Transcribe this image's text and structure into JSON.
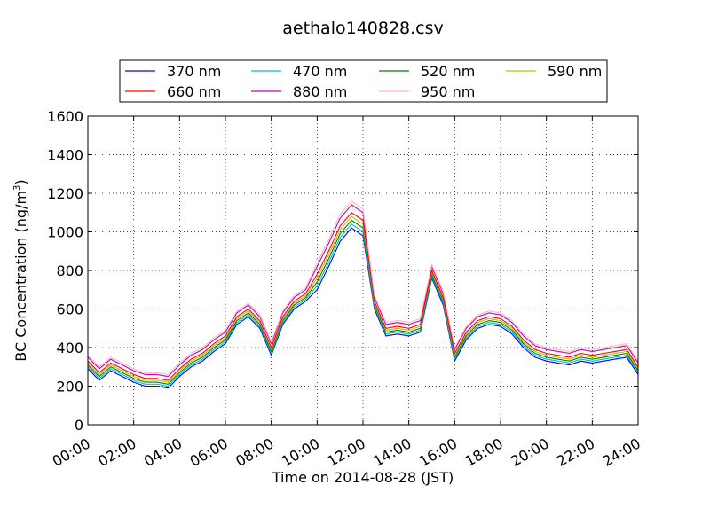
{
  "chart_data": {
    "type": "line",
    "title": "aethalo140828.csv",
    "xlabel": "Time on 2014-08-28 (JST)",
    "ylabel": {
      "main": "BC Concentration (ng/m",
      "sup": "3",
      "close": ")"
    },
    "xlim": [
      0,
      24
    ],
    "ylim": [
      0,
      1600
    ],
    "grid": true,
    "legend_position": "top-center",
    "x_ticks": [
      {
        "value": 0,
        "label": "00:00"
      },
      {
        "value": 2,
        "label": "02:00"
      },
      {
        "value": 4,
        "label": "04:00"
      },
      {
        "value": 6,
        "label": "06:00"
      },
      {
        "value": 8,
        "label": "08:00"
      },
      {
        "value": 10,
        "label": "10:00"
      },
      {
        "value": 12,
        "label": "12:00"
      },
      {
        "value": 14,
        "label": "14:00"
      },
      {
        "value": 16,
        "label": "16:00"
      },
      {
        "value": 18,
        "label": "18:00"
      },
      {
        "value": 20,
        "label": "20:00"
      },
      {
        "value": 22,
        "label": "22:00"
      },
      {
        "value": 24,
        "label": "24:00"
      }
    ],
    "y_ticks": [
      0,
      200,
      400,
      600,
      800,
      1000,
      1200,
      1400,
      1600
    ],
    "x": [
      0,
      0.5,
      1,
      1.5,
      2,
      2.5,
      3,
      3.5,
      4,
      4.5,
      5,
      5.5,
      6,
      6.5,
      7,
      7.5,
      8,
      8.5,
      9,
      9.5,
      10,
      10.5,
      11,
      11.5,
      12,
      12.5,
      13,
      13.5,
      14,
      14.5,
      15,
      15.5,
      16,
      16.5,
      17,
      17.5,
      18,
      18.5,
      19,
      19.5,
      20,
      20.5,
      21,
      21.5,
      22,
      22.5,
      23,
      23.5,
      24
    ],
    "series": [
      {
        "name": "370 nm",
        "color": "#0000ff",
        "values": [
          290,
          230,
          280,
          250,
          220,
          200,
          200,
          190,
          250,
          300,
          330,
          380,
          420,
          520,
          560,
          500,
          360,
          520,
          600,
          640,
          700,
          820,
          950,
          1020,
          980,
          600,
          460,
          470,
          460,
          480,
          760,
          620,
          330,
          440,
          500,
          520,
          510,
          470,
          400,
          350,
          330,
          320,
          310,
          330,
          320,
          330,
          340,
          350,
          260
        ]
      },
      {
        "name": "470 nm",
        "color": "#00bfbf",
        "values": [
          300,
          240,
          290,
          260,
          230,
          210,
          210,
          200,
          260,
          310,
          340,
          390,
          430,
          530,
          570,
          510,
          370,
          530,
          610,
          650,
          720,
          840,
          970,
          1040,
          1000,
          610,
          470,
          480,
          470,
          490,
          770,
          630,
          340,
          450,
          510,
          530,
          520,
          480,
          410,
          360,
          340,
          330,
          320,
          340,
          330,
          340,
          350,
          360,
          270
        ]
      },
      {
        "name": "520 nm",
        "color": "#008000",
        "values": [
          310,
          250,
          300,
          270,
          240,
          220,
          220,
          210,
          270,
          320,
          350,
          400,
          440,
          540,
          580,
          520,
          380,
          540,
          620,
          660,
          740,
          860,
          990,
          1060,
          1020,
          620,
          480,
          490,
          480,
          500,
          780,
          640,
          350,
          460,
          520,
          540,
          530,
          490,
          420,
          370,
          350,
          340,
          330,
          350,
          340,
          350,
          360,
          370,
          280
        ]
      },
      {
        "name": "590 nm",
        "color": "#bfbf00",
        "values": [
          320,
          260,
          310,
          280,
          250,
          230,
          230,
          220,
          280,
          330,
          360,
          410,
          450,
          550,
          590,
          530,
          390,
          550,
          630,
          670,
          760,
          880,
          1010,
          1080,
          1040,
          630,
          490,
          500,
          490,
          510,
          790,
          650,
          360,
          470,
          530,
          550,
          540,
          500,
          430,
          380,
          360,
          350,
          340,
          360,
          350,
          360,
          370,
          380,
          290
        ]
      },
      {
        "name": "660 nm",
        "color": "#ff0000",
        "values": [
          330,
          270,
          320,
          290,
          260,
          240,
          240,
          230,
          290,
          340,
          370,
          420,
          460,
          560,
          600,
          540,
          400,
          560,
          640,
          680,
          780,
          900,
          1030,
          1100,
          1060,
          640,
          500,
          510,
          500,
          520,
          800,
          660,
          370,
          480,
          540,
          560,
          550,
          510,
          440,
          390,
          370,
          360,
          350,
          370,
          360,
          370,
          380,
          390,
          300
        ]
      },
      {
        "name": "880 nm",
        "color": "#bf00bf",
        "values": [
          350,
          290,
          340,
          310,
          280,
          260,
          260,
          250,
          310,
          360,
          390,
          440,
          480,
          580,
          620,
          560,
          420,
          580,
          660,
          700,
          820,
          940,
          1070,
          1140,
          1100,
          660,
          520,
          530,
          520,
          540,
          820,
          680,
          390,
          500,
          560,
          580,
          570,
          530,
          460,
          410,
          390,
          380,
          370,
          390,
          380,
          390,
          400,
          410,
          320
        ]
      },
      {
        "name": "950 nm",
        "color": "#ffb6c1",
        "values": [
          360,
          300,
          350,
          320,
          290,
          270,
          270,
          260,
          320,
          370,
          400,
          450,
          490,
          590,
          630,
          570,
          430,
          590,
          670,
          710,
          840,
          960,
          1090,
          1160,
          1120,
          670,
          530,
          540,
          530,
          550,
          830,
          690,
          400,
          510,
          570,
          590,
          580,
          540,
          470,
          420,
          400,
          390,
          380,
          400,
          390,
          400,
          410,
          420,
          330
        ]
      }
    ]
  }
}
